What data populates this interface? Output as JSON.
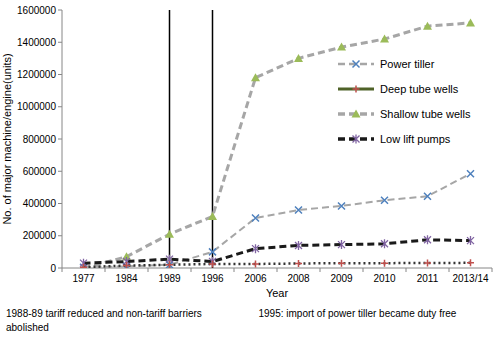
{
  "chart_data": {
    "type": "line",
    "x_label": "Year",
    "y_label": "No. of major machine/engine(units)",
    "categories": [
      "1977",
      "1984",
      "1989",
      "1996",
      "2006",
      "2008",
      "2009",
      "2010",
      "2011",
      "2013/14"
    ],
    "ylim": [
      0,
      1600000
    ],
    "yticks": [
      0,
      200000,
      400000,
      600000,
      800000,
      1000000,
      1200000,
      1400000,
      1600000
    ],
    "grid": false,
    "legend": "upper right",
    "series": [
      {
        "name": "Power tiller",
        "color": "#a6a6a6",
        "line_style": "dashed",
        "marker": "x",
        "values": [
          5000,
          10000,
          20000,
          100000,
          310000,
          360000,
          385000,
          420000,
          445000,
          585000
        ]
      },
      {
        "name": "Deep tube wells",
        "color": "#333333",
        "line_style": "dotted",
        "marker": "plus",
        "values": [
          5000,
          15000,
          20000,
          25000,
          25000,
          28000,
          30000,
          30000,
          31000,
          32000
        ]
      },
      {
        "name": "Shallow tube wells",
        "color": "#a6a6a6",
        "line_style": "dashed",
        "marker": "triangle",
        "values": [
          0,
          70000,
          210000,
          320000,
          1180000,
          1300000,
          1370000,
          1420000,
          1500000,
          1520000
        ]
      },
      {
        "name": "Low lift pumps",
        "color": "#1a1a1a",
        "line_style": "dashed",
        "marker": "star",
        "values": [
          30000,
          40000,
          55000,
          40000,
          120000,
          140000,
          145000,
          150000,
          175000,
          170000
        ]
      }
    ],
    "annotations": [
      {
        "x": "1989",
        "lines": [
          "1988-89 tariff reduced and non-tariff barriers",
          "abolished"
        ]
      },
      {
        "x": "1996",
        "lines": [
          "1995: import of power tiller became duty free"
        ]
      }
    ]
  }
}
